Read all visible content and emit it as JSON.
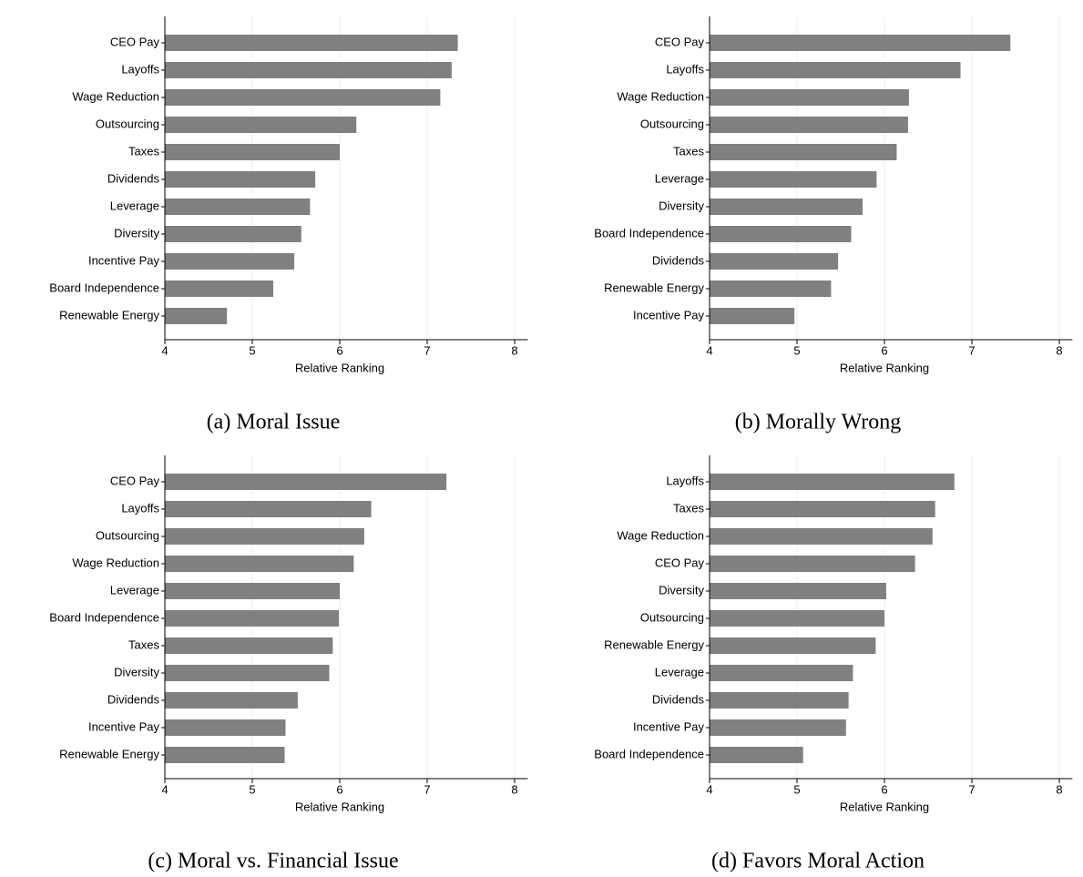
{
  "chart_data": [
    {
      "type": "bar",
      "orientation": "horizontal",
      "title": "(a) Moral Issue",
      "xlabel": "Relative Ranking",
      "categories": [
        "CEO Pay",
        "Layoffs",
        "Wage Reduction",
        "Outsourcing",
        "Taxes",
        "Dividends",
        "Leverage",
        "Diversity",
        "Incentive Pay",
        "Board Independence",
        "Renewable Energy"
      ],
      "values": [
        7.35,
        7.28,
        7.15,
        6.19,
        6.0,
        5.72,
        5.66,
        5.56,
        5.48,
        5.24,
        4.71
      ],
      "color": "#808080",
      "xlim": [
        4,
        8.15
      ],
      "xticks": [
        4,
        5,
        6,
        7,
        8
      ],
      "grid": true
    },
    {
      "type": "bar",
      "orientation": "horizontal",
      "title": "(b) Morally Wrong",
      "xlabel": "Relative Ranking",
      "categories": [
        "CEO Pay",
        "Layoffs",
        "Wage Reduction",
        "Outsourcing",
        "Taxes",
        "Leverage",
        "Diversity",
        "Board Independence",
        "Dividends",
        "Renewable Energy",
        "Incentive Pay"
      ],
      "values": [
        7.44,
        6.87,
        6.28,
        6.27,
        6.14,
        5.91,
        5.75,
        5.62,
        5.47,
        5.39,
        4.97
      ],
      "color": "#808080",
      "xlim": [
        4,
        8.15
      ],
      "xticks": [
        4,
        5,
        6,
        7,
        8
      ],
      "grid": true
    },
    {
      "type": "bar",
      "orientation": "horizontal",
      "title": "(c) Moral vs. Financial Issue",
      "xlabel": "Relative Ranking",
      "categories": [
        "CEO Pay",
        "Layoffs",
        "Outsourcing",
        "Wage Reduction",
        "Leverage",
        "Board Independence",
        "Taxes",
        "Diversity",
        "Dividends",
        "Incentive Pay",
        "Renewable Energy"
      ],
      "values": [
        7.22,
        6.36,
        6.28,
        6.16,
        6.0,
        5.99,
        5.92,
        5.88,
        5.52,
        5.38,
        5.37
      ],
      "color": "#808080",
      "xlim": [
        4,
        8.15
      ],
      "xticks": [
        4,
        5,
        6,
        7,
        8
      ],
      "grid": true
    },
    {
      "type": "bar",
      "orientation": "horizontal",
      "title": "(d) Favors Moral Action",
      "xlabel": "Relative Ranking",
      "categories": [
        "Layoffs",
        "Taxes",
        "Wage Reduction",
        "CEO Pay",
        "Diversity",
        "Outsourcing",
        "Renewable Energy",
        "Leverage",
        "Dividends",
        "Incentive Pay",
        "Board Independence"
      ],
      "values": [
        6.8,
        6.58,
        6.55,
        6.35,
        6.02,
        6.0,
        5.9,
        5.64,
        5.59,
        5.56,
        5.07
      ],
      "color": "#808080",
      "xlim": [
        4,
        8.15
      ],
      "xticks": [
        4,
        5,
        6,
        7,
        8
      ],
      "grid": true
    }
  ]
}
